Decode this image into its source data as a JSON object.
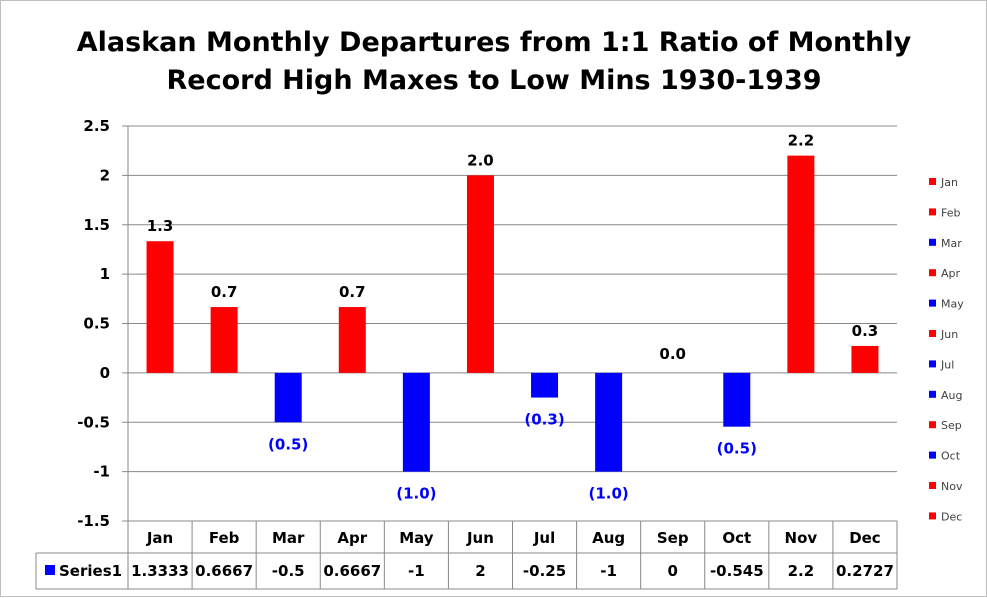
{
  "chart_data": {
    "type": "bar",
    "title_lines": [
      "Alaskan Monthly Departures from 1:1 Ratio of Monthly",
      "Record High Maxes to Low Mins 1930-1939"
    ],
    "categories": [
      "Jan",
      "Feb",
      "Mar",
      "Apr",
      "May",
      "Jun",
      "Jul",
      "Aug",
      "Sep",
      "Oct",
      "Nov",
      "Dec"
    ],
    "series": [
      {
        "name": "Series1",
        "values": [
          1.3333,
          0.6667,
          -0.5,
          0.6667,
          -1,
          2,
          -0.25,
          -1,
          0,
          -0.545,
          2.2,
          0.2727
        ],
        "table_values": [
          "1.3333",
          "0.6667",
          "-0.5",
          "0.6667",
          "-1",
          "2",
          "-0.25",
          "-1",
          "0",
          "-0.545",
          "2.2",
          "0.2727"
        ]
      }
    ],
    "data_labels": [
      "1.3",
      "0.7",
      "(0.5)",
      "0.7",
      "(1.0)",
      "2.0",
      "(0.3)",
      "(1.0)",
      "0.0",
      "(0.5)",
      "2.2",
      "0.3"
    ],
    "y_ticks": [
      "2.5",
      "2",
      "1.5",
      "1",
      "0.5",
      "0",
      "-0.5",
      "-1",
      "-1.5"
    ],
    "ylim": [
      -1.5,
      2.5
    ],
    "grid": true,
    "legend_position": "right",
    "legend_entries": [
      "Jan",
      "Feb",
      "Mar",
      "Apr",
      "May",
      "Jun",
      "Jul",
      "Aug",
      "Sep",
      "Oct",
      "Nov",
      "Dec"
    ],
    "colors": {
      "positive": "#ff0000",
      "negative": "#0000ff",
      "zero_label": "#000000",
      "grid": "#888888"
    }
  }
}
